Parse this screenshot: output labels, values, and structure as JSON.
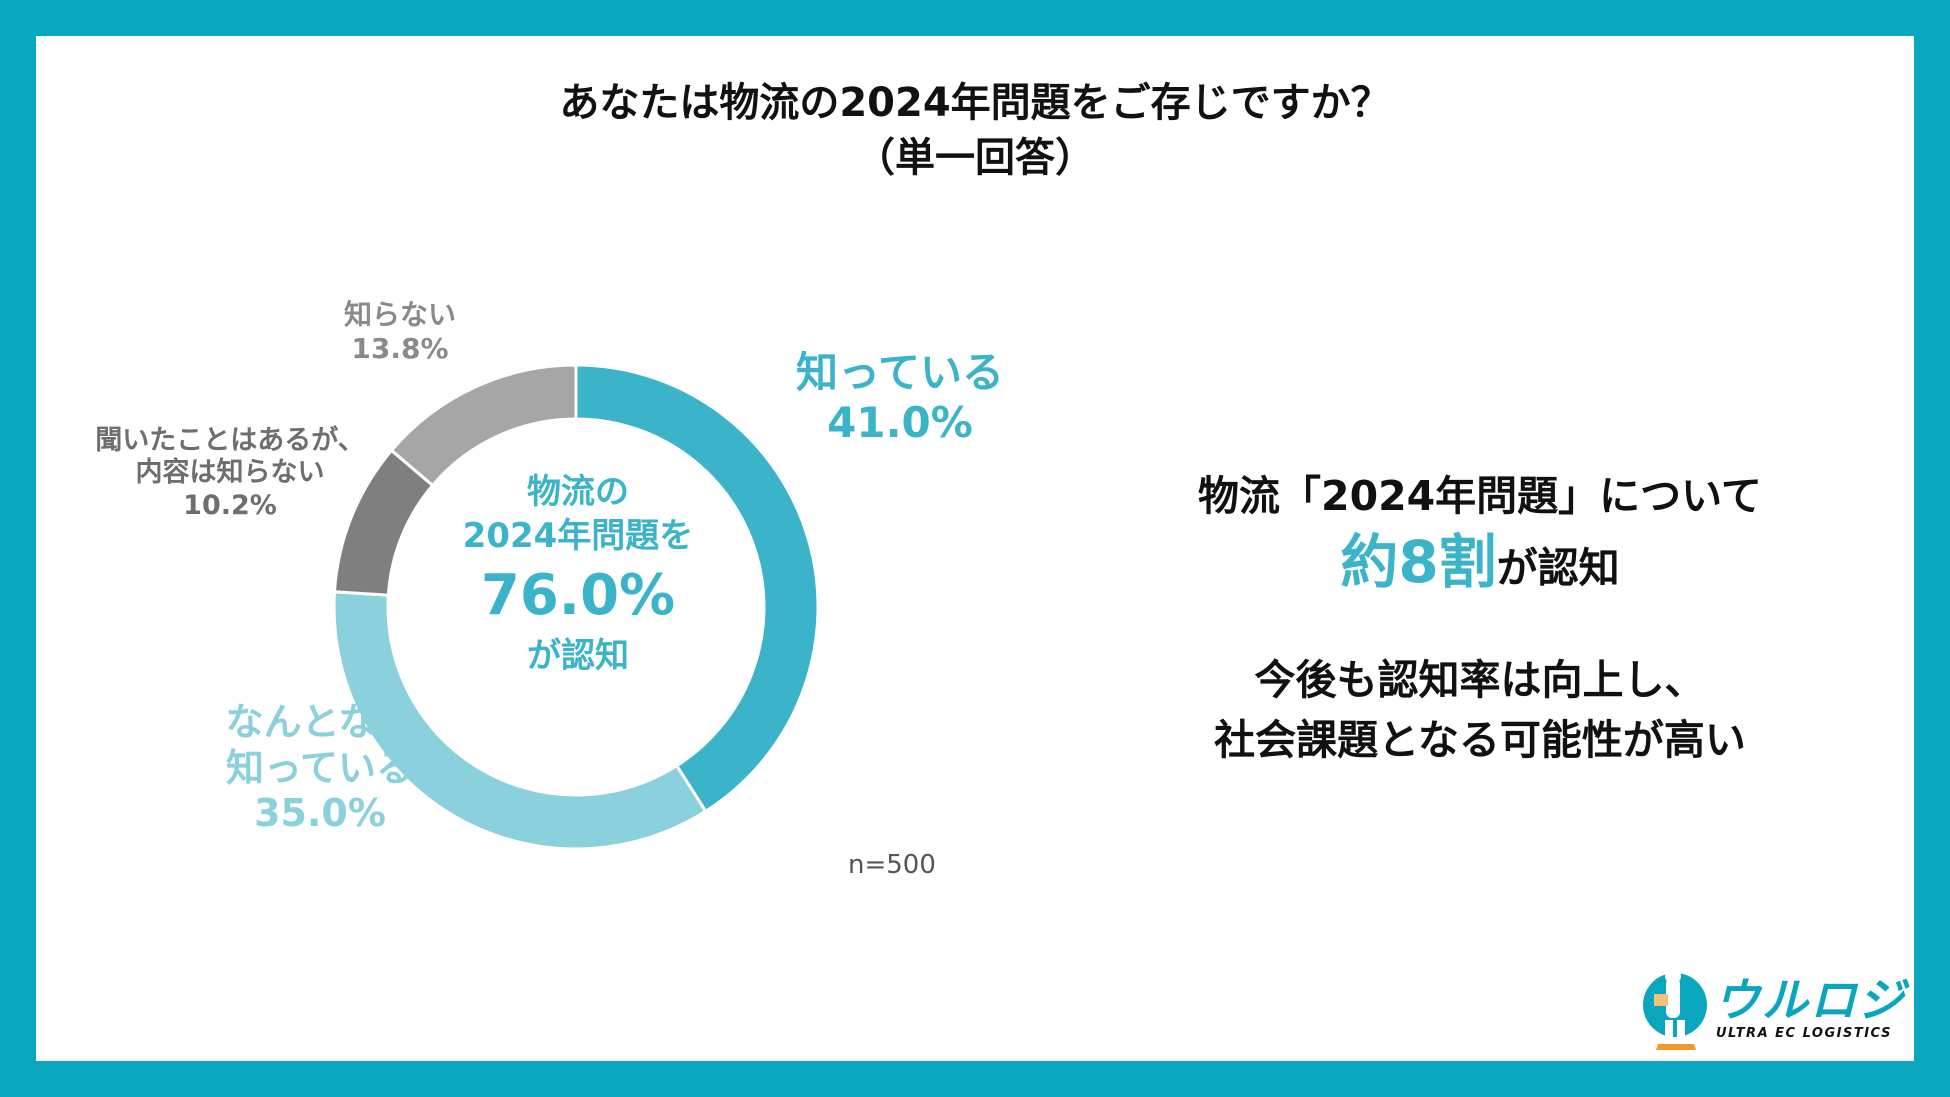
{
  "title": {
    "line1": "あなたは物流の2024年問題をご存じですか？",
    "line2": "（単一回答）"
  },
  "chart_data": {
    "type": "pie",
    "donut": true,
    "categories": [
      "知っている",
      "なんとなく知っている",
      "聞いたことはあるが、内容は知らない",
      "知らない"
    ],
    "values": [
      41.0,
      35.0,
      10.2,
      13.8
    ],
    "colors": [
      "#3bb3c8",
      "#8bd0dd",
      "#7f7f7f",
      "#a6a6a6"
    ],
    "labels": [
      {
        "name_lines": [
          "知っている"
        ],
        "value": "41.0%"
      },
      {
        "name_lines": [
          "なんとなく",
          "知っている"
        ],
        "value": "35.0%"
      },
      {
        "name_lines": [
          "聞いたことはあるが、",
          "内容は知らない"
        ],
        "value": "10.2%"
      },
      {
        "name_lines": [
          "知らない"
        ],
        "value": "13.8%"
      }
    ],
    "center": {
      "line1": "物流の",
      "line2": "2024年問題を",
      "value": "76.0%",
      "line3": "が認知"
    }
  },
  "sample_size": "n=500",
  "summary": {
    "line1": "物流「2024年問題」について",
    "highlight": "約8割",
    "line2_rest": "が認知",
    "line3": "今後も認知率は向上し、",
    "line4": "社会課題となる可能性が高い"
  },
  "logo": {
    "text": "ウルロジ",
    "subtext": "ULTRA EC LOGISTICS",
    "color": "#0aa6bd"
  }
}
